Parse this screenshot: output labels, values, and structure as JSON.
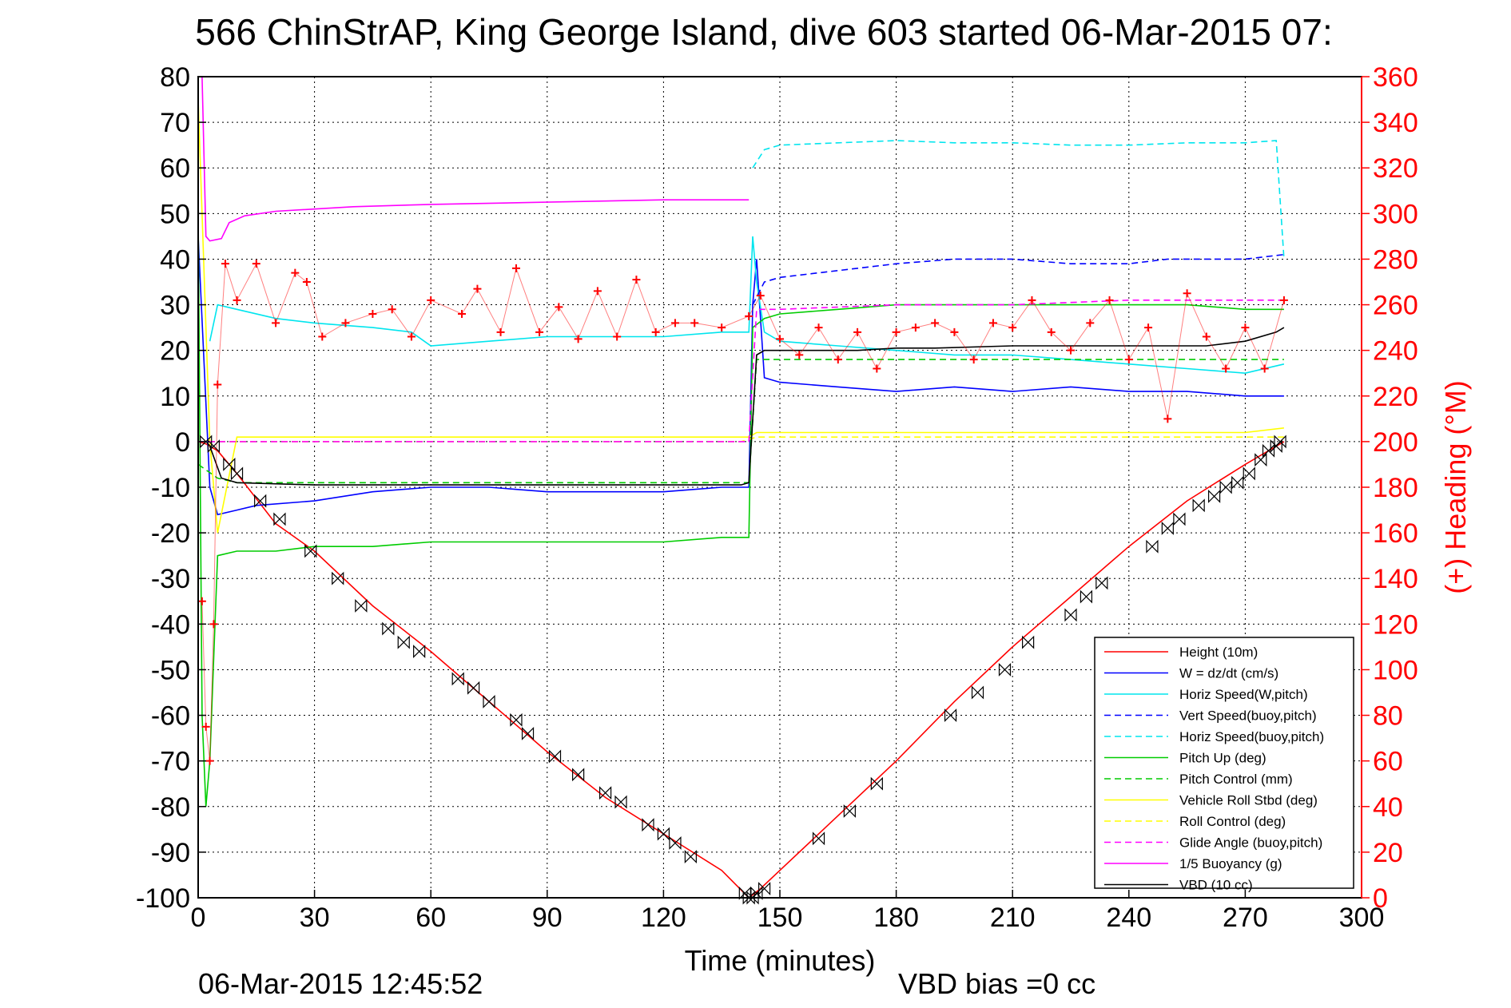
{
  "chart_data": {
    "type": "line",
    "title": "566 ChinStrAP, King George Island, dive 603 started 06-Mar-2015 07:",
    "xlabel": "Time (minutes)",
    "ylabel_right": "(+) Heading (°M)",
    "footer_left": "06-Mar-2015 12:45:52",
    "footer_right": "VBD bias =0 cc",
    "xlim": [
      0,
      300
    ],
    "ylim": [
      -100,
      80
    ],
    "ylim_right": [
      0,
      360
    ],
    "grid": true,
    "legend_position": "lower-right",
    "x_ticks": [
      "0",
      "30",
      "60",
      "90",
      "120",
      "150",
      "180",
      "210",
      "240",
      "270",
      "300"
    ],
    "y_ticks": [
      "80",
      "70",
      "60",
      "50",
      "40",
      "30",
      "20",
      "10",
      "0",
      "-10",
      "-20",
      "-30",
      "-40",
      "-50",
      "-60",
      "-70",
      "-80",
      "-90",
      "-100"
    ],
    "y_ticks_right": [
      "360",
      "340",
      "320",
      "300",
      "280",
      "260",
      "240",
      "220",
      "200",
      "180",
      "160",
      "140",
      "120",
      "100",
      "80",
      "60",
      "40",
      "20",
      "0"
    ],
    "series": [
      {
        "name": "Height (10m)",
        "color": "#ff0000",
        "dash": "solid",
        "x": [
          0,
          2,
          5,
          10,
          20,
          30,
          45,
          60,
          75,
          90,
          105,
          120,
          135,
          142,
          145,
          150,
          165,
          180,
          195,
          210,
          225,
          240,
          255,
          270,
          280
        ],
        "y": [
          0,
          -0.5,
          -2,
          -7,
          -18,
          -24,
          -36,
          -46,
          -57,
          -68,
          -78,
          -86,
          -94,
          -100,
          -98,
          -94,
          -82,
          -70,
          -57,
          -45,
          -34,
          -23,
          -13,
          -5,
          0
        ]
      },
      {
        "name": "W = dz/dt (cm/s)",
        "color": "#0000ff",
        "dash": "solid",
        "x": [
          0,
          3,
          5,
          10,
          15,
          30,
          45,
          60,
          75,
          90,
          105,
          120,
          135,
          142,
          143,
          144,
          146,
          150,
          165,
          180,
          195,
          210,
          225,
          240,
          255,
          270,
          280
        ],
        "y": [
          45,
          -10,
          -16,
          -15,
          -14,
          -13,
          -11,
          -10,
          -10,
          -11,
          -11,
          -11,
          -10,
          -10,
          30,
          40,
          14,
          13,
          12,
          11,
          12,
          11,
          12,
          11,
          11,
          10,
          10
        ]
      },
      {
        "name": "Horiz Speed(W,pitch)",
        "color": "#00e5ee",
        "dash": "solid",
        "x": [
          3,
          5,
          10,
          20,
          30,
          45,
          55,
          60,
          75,
          90,
          105,
          120,
          135,
          142,
          143,
          144,
          146,
          150,
          165,
          180,
          195,
          210,
          225,
          240,
          255,
          270,
          280
        ],
        "y": [
          22,
          30,
          29,
          27,
          26,
          25,
          24,
          21,
          22,
          23,
          23,
          23,
          24,
          24,
          45,
          35,
          24,
          22,
          21,
          20,
          19,
          19,
          18,
          17,
          16,
          15,
          17
        ]
      },
      {
        "name": "Vert Speed(buoy,pitch)",
        "color": "#0000ff",
        "dash": "dashed",
        "x": [
          143,
          146,
          150,
          160,
          170,
          180,
          195,
          210,
          225,
          240,
          250,
          260,
          270,
          280
        ],
        "y": [
          30,
          35,
          36,
          37,
          38,
          39,
          40,
          40,
          39,
          39,
          40,
          40,
          40,
          41
        ]
      },
      {
        "name": "Horiz Speed(buoy,pitch)",
        "color": "#00e5ee",
        "dash": "dashed",
        "x": [
          143,
          146,
          150,
          165,
          180,
          195,
          210,
          225,
          240,
          255,
          270,
          278,
          280
        ],
        "y": [
          60,
          64,
          65,
          65.5,
          66,
          65.5,
          65.5,
          65,
          65,
          65.5,
          65.5,
          66,
          40
        ]
      },
      {
        "name": "Pitch Up (deg)",
        "color": "#00cc00",
        "dash": "solid",
        "x": [
          0,
          1,
          2,
          3,
          5,
          10,
          20,
          30,
          45,
          60,
          75,
          90,
          105,
          120,
          135,
          142,
          143,
          146,
          150,
          165,
          180,
          195,
          210,
          225,
          240,
          255,
          270,
          280
        ],
        "y": [
          50,
          -60,
          -80,
          -70,
          -25,
          -24,
          -24,
          -23,
          -23,
          -22,
          -22,
          -22,
          -22,
          -22,
          -21,
          -21,
          25,
          27,
          28,
          29,
          30,
          30,
          30,
          30,
          30,
          30,
          29,
          29
        ]
      },
      {
        "name": "Pitch Control (mm)",
        "color": "#00cc00",
        "dash": "dashed",
        "x": [
          0,
          5,
          10,
          60,
          120,
          142,
          144,
          150,
          280
        ],
        "y": [
          -5,
          -8,
          -9,
          -9,
          -9,
          -9,
          18,
          18,
          18
        ]
      },
      {
        "name": "Vehicle Roll Stbd (deg)",
        "color": "#ffff00",
        "dash": "solid",
        "x": [
          0,
          3,
          5,
          10,
          30,
          60,
          90,
          120,
          140,
          142,
          144,
          146,
          150,
          180,
          210,
          240,
          270,
          280
        ],
        "y": [
          75,
          0,
          -20,
          1,
          1,
          1,
          1,
          1,
          1,
          1,
          2,
          2,
          2,
          2,
          2,
          2,
          2,
          3
        ]
      },
      {
        "name": "Roll Control (deg)",
        "color": "#ffff00",
        "dash": "dashed",
        "x": [
          0,
          5,
          10,
          140,
          144,
          150,
          280
        ],
        "y": [
          0,
          0,
          0,
          0,
          1,
          1,
          1
        ]
      },
      {
        "name": "Glide Angle (buoy,pitch)",
        "color": "#ff00ff",
        "dash": "dashed",
        "x": [
          0,
          10,
          60,
          120,
          142,
          144,
          150,
          180,
          210,
          240,
          270,
          280
        ],
        "y": [
          0,
          0,
          0,
          0,
          0,
          29,
          29,
          30,
          30,
          31,
          31,
          31
        ]
      },
      {
        "name": "1/5 Buoyancy (g)",
        "color": "#ff00ff",
        "dash": "solid",
        "x": [
          1,
          2,
          3,
          6,
          8,
          12,
          20,
          40,
          60,
          90,
          120,
          140,
          142
        ],
        "y": [
          80,
          45,
          44,
          44.5,
          48,
          49.5,
          50.5,
          51.5,
          52,
          52.5,
          53,
          53,
          53
        ]
      },
      {
        "name": "VBD (10 cc)",
        "color": "#000000",
        "dash": "solid",
        "x": [
          3,
          6,
          10,
          30,
          60,
          90,
          120,
          140,
          142,
          144,
          146,
          150,
          170,
          180,
          190,
          210,
          240,
          260,
          270,
          278,
          280
        ],
        "y": [
          -1,
          -8,
          -9,
          -9.5,
          -9.5,
          -9.5,
          -9.5,
          -9.5,
          -9,
          19,
          20,
          20,
          20,
          20.5,
          20.5,
          21,
          21,
          21,
          22,
          24,
          25
        ]
      }
    ],
    "heading": {
      "name": "(+) Heading (°M)",
      "color": "#ff0000",
      "marker": "+",
      "x": [
        1,
        2,
        3,
        4,
        5,
        7,
        10,
        15,
        20,
        25,
        28,
        32,
        38,
        45,
        50,
        55,
        60,
        68,
        72,
        78,
        82,
        88,
        93,
        98,
        103,
        108,
        113,
        118,
        123,
        128,
        135,
        142,
        145,
        150,
        155,
        160,
        165,
        170,
        175,
        180,
        185,
        190,
        195,
        200,
        205,
        210,
        215,
        220,
        225,
        230,
        235,
        240,
        245,
        250,
        255,
        260,
        265,
        270,
        275,
        280
      ],
      "y": [
        130,
        75,
        60,
        120,
        225,
        278,
        262,
        278,
        252,
        274,
        270,
        246,
        252,
        256,
        258,
        246,
        262,
        256,
        267,
        248,
        276,
        248,
        259,
        245,
        266,
        246,
        271,
        248,
        252,
        252,
        250,
        255,
        264,
        245,
        238,
        250,
        236,
        248,
        232,
        248,
        250,
        252,
        248,
        236,
        252,
        250,
        262,
        248,
        240,
        252,
        262,
        236,
        250,
        210,
        265,
        246,
        232,
        250,
        232,
        262
      ]
    },
    "markers": {
      "name": "Height samples",
      "color": "#000000",
      "marker": "hourglass",
      "x": [
        2,
        4,
        8,
        10,
        16,
        21,
        29,
        36,
        42,
        49,
        53,
        57,
        67,
        71,
        75,
        82,
        85,
        92,
        98,
        105,
        109,
        116,
        120,
        123,
        127,
        141,
        142,
        143,
        144,
        146,
        160,
        168,
        175,
        194,
        201,
        208,
        214,
        225,
        229,
        233,
        246,
        250,
        253,
        258,
        262,
        265,
        268,
        271,
        274,
        276,
        278,
        279
      ],
      "y": [
        0,
        -1,
        -5,
        -7,
        -13,
        -17,
        -24,
        -30,
        -36,
        -41,
        -44,
        -46,
        -52,
        -54,
        -57,
        -61,
        -64,
        -69,
        -73,
        -77,
        -79,
        -84,
        -86,
        -88,
        -91,
        -99,
        -100,
        -100,
        -99,
        -98,
        -87,
        -81,
        -75,
        -60,
        -55,
        -50,
        -44,
        -38,
        -34,
        -31,
        -23,
        -19,
        -17,
        -14,
        -12,
        -10,
        -9,
        -7,
        -4,
        -2,
        -1,
        0
      ]
    }
  }
}
